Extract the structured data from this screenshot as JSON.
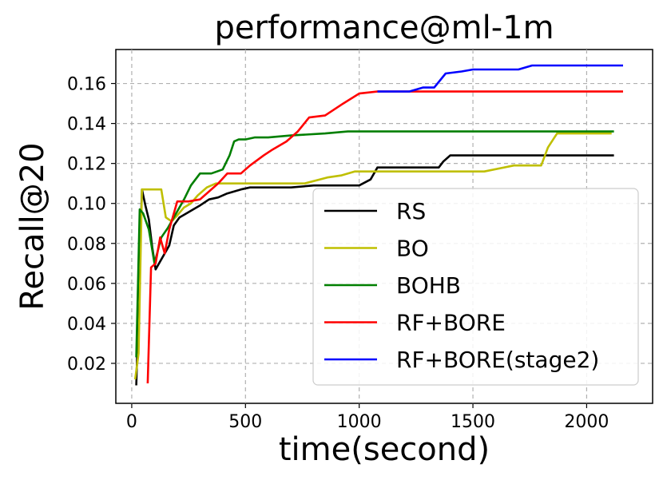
{
  "chart_data": {
    "type": "line",
    "title": "performance@ml-1m",
    "xlabel": "time(second)",
    "ylabel": "Recall@20",
    "xlim": [
      -70,
      2290
    ],
    "ylim": [
      0.0,
      0.177
    ],
    "xticks": [
      0,
      500,
      1000,
      1500,
      2000
    ],
    "yticks": [
      0.02,
      0.04,
      0.06,
      0.08,
      0.1,
      0.12,
      0.14,
      0.16
    ],
    "xtick_labels": [
      "0",
      "500",
      "1000",
      "1500",
      "2000"
    ],
    "ytick_labels": [
      "0.02",
      "0.04",
      "0.06",
      "0.08",
      "0.10",
      "0.12",
      "0.14",
      "0.16"
    ],
    "grid": true,
    "legend_position": "lower right",
    "series": [
      {
        "name": "RS",
        "color": "#000000",
        "x": [
          20,
          45,
          60,
          75,
          90,
          105,
          125,
          145,
          165,
          185,
          210,
          240,
          270,
          300,
          340,
          380,
          420,
          480,
          520,
          560,
          700,
          800,
          900,
          1000,
          1050,
          1080,
          1350,
          1370,
          1400,
          1450,
          1500,
          2120
        ],
        "y": [
          0.009,
          0.107,
          0.099,
          0.092,
          0.078,
          0.067,
          0.071,
          0.075,
          0.079,
          0.089,
          0.093,
          0.095,
          0.097,
          0.099,
          0.102,
          0.103,
          0.105,
          0.107,
          0.108,
          0.108,
          0.108,
          0.109,
          0.109,
          0.109,
          0.112,
          0.118,
          0.118,
          0.121,
          0.124,
          0.124,
          0.124,
          0.124
        ]
      },
      {
        "name": "BO",
        "color": "#bfbf00",
        "x": [
          15,
          30,
          45,
          70,
          130,
          150,
          175,
          200,
          230,
          260,
          290,
          330,
          370,
          420,
          480,
          560,
          660,
          760,
          860,
          920,
          980,
          1100,
          1300,
          1400,
          1550,
          1680,
          1800,
          1830,
          1870,
          2110
        ],
        "y": [
          0.012,
          0.025,
          0.107,
          0.107,
          0.107,
          0.093,
          0.091,
          0.094,
          0.098,
          0.1,
          0.104,
          0.108,
          0.11,
          0.11,
          0.11,
          0.11,
          0.11,
          0.11,
          0.113,
          0.114,
          0.116,
          0.116,
          0.116,
          0.116,
          0.116,
          0.119,
          0.119,
          0.128,
          0.135,
          0.135
        ]
      },
      {
        "name": "BOHB",
        "color": "#007f00",
        "x": [
          20,
          35,
          50,
          75,
          100,
          130,
          160,
          190,
          230,
          260,
          300,
          350,
          400,
          430,
          450,
          470,
          500,
          540,
          600,
          700,
          850,
          950,
          1100,
          1300,
          1600,
          2120
        ],
        "y": [
          0.023,
          0.097,
          0.095,
          0.087,
          0.07,
          0.083,
          0.088,
          0.094,
          0.102,
          0.109,
          0.115,
          0.115,
          0.117,
          0.124,
          0.131,
          0.132,
          0.132,
          0.133,
          0.133,
          0.134,
          0.135,
          0.136,
          0.136,
          0.136,
          0.136,
          0.136
        ]
      },
      {
        "name": "RF+BORE",
        "color": "#ff0000",
        "x": [
          70,
          85,
          105,
          125,
          145,
          165,
          200,
          250,
          300,
          380,
          420,
          480,
          520,
          580,
          620,
          680,
          730,
          780,
          850,
          930,
          1000,
          1080,
          2160
        ],
        "y": [
          0.01,
          0.068,
          0.07,
          0.083,
          0.075,
          0.087,
          0.101,
          0.101,
          0.102,
          0.11,
          0.115,
          0.115,
          0.119,
          0.124,
          0.127,
          0.131,
          0.136,
          0.143,
          0.144,
          0.15,
          0.155,
          0.156,
          0.156
        ]
      },
      {
        "name": "RF+BORE(stage2)",
        "color": "#0000ff",
        "x": [
          1080,
          1220,
          1280,
          1330,
          1380,
          1450,
          1500,
          1700,
          1760,
          2160
        ],
        "y": [
          0.156,
          0.156,
          0.158,
          0.158,
          0.165,
          0.166,
          0.167,
          0.167,
          0.169,
          0.169
        ]
      }
    ]
  }
}
